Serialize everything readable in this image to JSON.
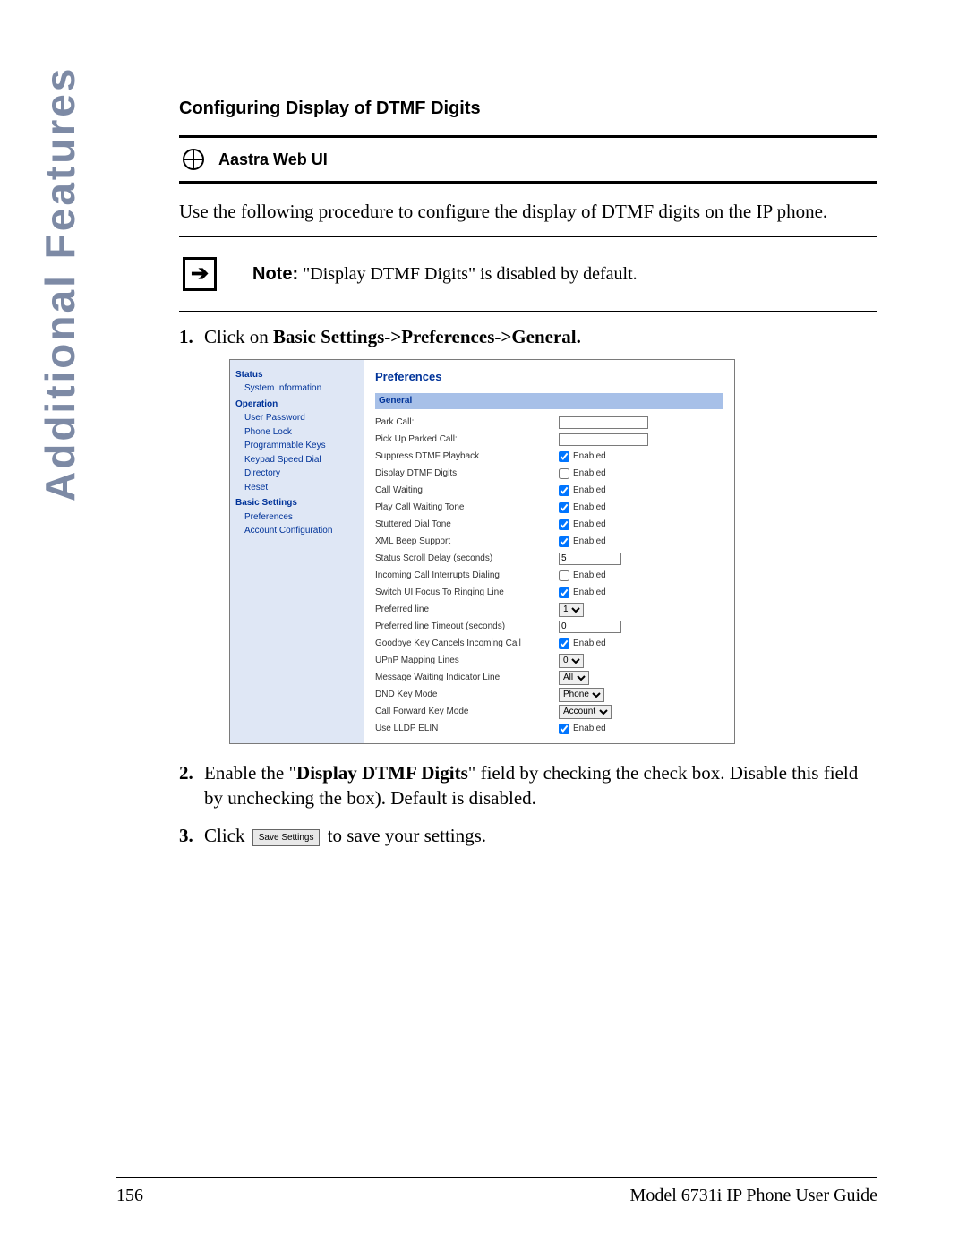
{
  "side_label": "Additional Features",
  "section_title": "Configuring Display of DTMF Digits",
  "subhead": "Aastra Web UI",
  "intro": "Use the following procedure to configure the display of DTMF digits on the IP phone.",
  "note_label": "Note:",
  "note_text": "\"Display DTMF Digits\" is disabled by default.",
  "step1_prefix": "Click on ",
  "step1_bold": "Basic Settings->Preferences->General.",
  "step2_a": "Enable the \"",
  "step2_bold": "Display DTMF Digits",
  "step2_b": "\" field by checking the check box. Disable this field by unchecking the box). Default is disabled.",
  "step3_a": "Click ",
  "step3_btn": "Save Settings",
  "step3_b": " to save your settings.",
  "footer_page": "156",
  "footer_doc": "Model 6731i IP Phone User Guide",
  "webui": {
    "nav": {
      "status": "Status",
      "sysinfo": "System Information",
      "operation": "Operation",
      "items_op": [
        "User Password",
        "Phone Lock",
        "Programmable Keys",
        "Keypad Speed Dial",
        "Directory",
        "Reset"
      ],
      "basic": "Basic Settings",
      "items_basic": [
        "Preferences",
        "Account Configuration"
      ]
    },
    "title": "Preferences",
    "general_label": "General",
    "rows": [
      {
        "label": "Park Call:",
        "type": "text",
        "value": "",
        "wide": true
      },
      {
        "label": "Pick Up Parked Call:",
        "type": "text",
        "value": "",
        "wide": true
      },
      {
        "label": "Suppress DTMF Playback",
        "type": "check",
        "checked": true,
        "clabel": "Enabled"
      },
      {
        "label": "Display DTMF Digits",
        "type": "check",
        "checked": false,
        "clabel": "Enabled"
      },
      {
        "label": "Call Waiting",
        "type": "check",
        "checked": true,
        "clabel": "Enabled"
      },
      {
        "label": "Play Call Waiting Tone",
        "type": "check",
        "checked": true,
        "clabel": "Enabled"
      },
      {
        "label": "Stuttered Dial Tone",
        "type": "check",
        "checked": true,
        "clabel": "Enabled"
      },
      {
        "label": "XML Beep Support",
        "type": "check",
        "checked": true,
        "clabel": "Enabled"
      },
      {
        "label": "Status Scroll Delay (seconds)",
        "type": "text",
        "value": "5"
      },
      {
        "label": "Incoming Call Interrupts Dialing",
        "type": "check",
        "checked": false,
        "clabel": "Enabled"
      },
      {
        "label": "Switch UI Focus To Ringing Line",
        "type": "check",
        "checked": true,
        "clabel": "Enabled"
      },
      {
        "label": "Preferred line",
        "type": "select",
        "value": "1"
      },
      {
        "label": "Preferred line Timeout (seconds)",
        "type": "text",
        "value": "0"
      },
      {
        "label": "Goodbye Key Cancels Incoming Call",
        "type": "check",
        "checked": true,
        "clabel": "Enabled"
      },
      {
        "label": "UPnP Mapping Lines",
        "type": "select",
        "value": "0"
      },
      {
        "label": "Message Waiting Indicator Line",
        "type": "select",
        "value": "All"
      },
      {
        "label": "DND Key Mode",
        "type": "select",
        "value": "Phone"
      },
      {
        "label": "Call Forward Key Mode",
        "type": "select",
        "value": "Account"
      },
      {
        "label": "Use LLDP ELIN",
        "type": "check",
        "checked": true,
        "clabel": "Enabled"
      }
    ]
  },
  "colors": {
    "side_label": "#7d8aa5",
    "nav_bg": "#dfe7f5",
    "link_blue": "#003399",
    "gen_bar_bg": "#a7c0e8"
  }
}
